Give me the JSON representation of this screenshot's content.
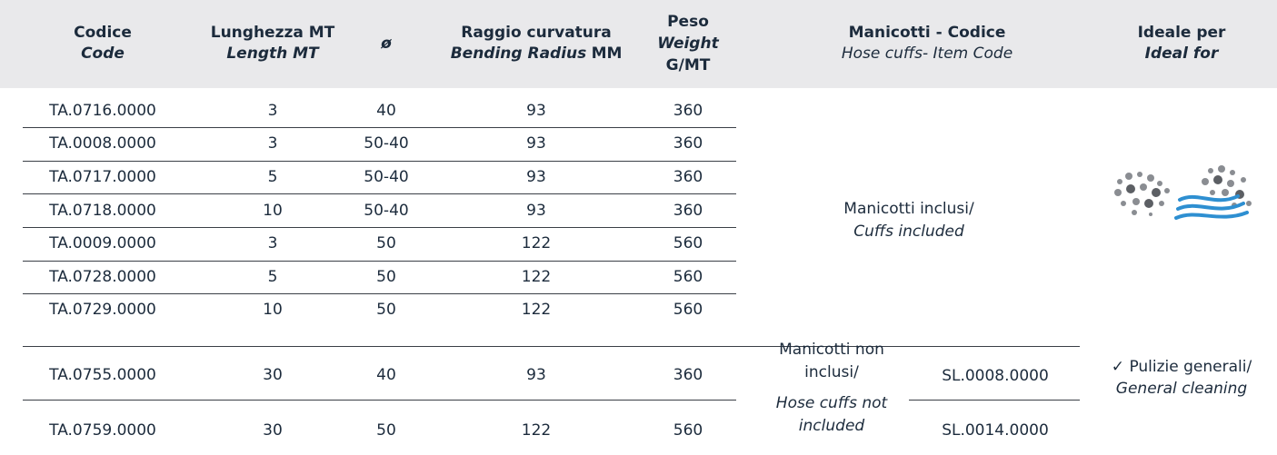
{
  "table": {
    "header": [
      {
        "bold": "Codice",
        "italic": "Code"
      },
      {
        "bold": "Lunghezza MT",
        "italic": "Length MT"
      },
      {
        "italic": "ø"
      },
      {
        "bold": "Raggio curvatura",
        "italic": "Bending Radius",
        "unit": "MM"
      },
      {
        "bold": "Peso",
        "italic": "Weight",
        "unit": "G/MT"
      },
      {
        "bold": "Manicotti - Codice",
        "italic": "Hose cuffs- Item Code"
      },
      {
        "bold": "Ideale per",
        "italic": "Ideal for"
      }
    ],
    "rows": [
      [
        "TA.0716.0000",
        "3",
        "40",
        "93",
        "360"
      ],
      [
        "TA.0008.0000",
        "3",
        "50-40",
        "93",
        "360"
      ],
      [
        "TA.0717.0000",
        "5",
        "50-40",
        "93",
        "360"
      ],
      [
        "TA.0718.0000",
        "10",
        "50-40",
        "93",
        "360"
      ],
      [
        "TA.0009.0000",
        "3",
        "50",
        "122",
        "560"
      ],
      [
        "TA.0728.0000",
        "5",
        "50",
        "122",
        "560"
      ],
      [
        "TA.0729.0000",
        "10",
        "50",
        "122",
        "560"
      ],
      [
        "TA.0755.0000",
        "30",
        "40",
        "93",
        "360"
      ],
      [
        "TA.0759.0000",
        "30",
        "50",
        "122",
        "560"
      ]
    ],
    "cuffs_included": {
      "text": "Manicotti inclusi/",
      "italic": "Cuffs included"
    },
    "cuffs_not_included": {
      "text": [
        "Manicotti non",
        "inclusi/"
      ],
      "italic": [
        "Hose cuffs not",
        "included"
      ],
      "codes": [
        "SL.0008.0000",
        "SL.0014.0000"
      ]
    },
    "ideal": {
      "text": "✓ Pulizie generali/",
      "italic": "General cleaning"
    }
  }
}
